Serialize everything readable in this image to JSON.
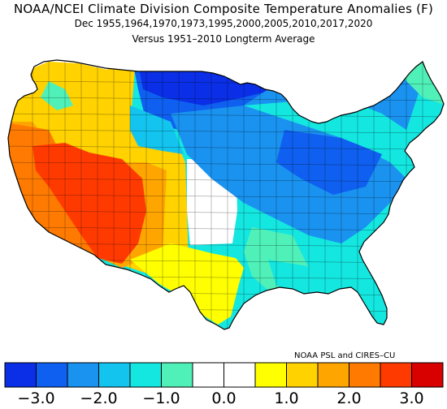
{
  "title": "NOAA/NCEI Climate Division Composite Temperature Anomalies (F)",
  "subtitle": "Dec 1955,1964,1970,1973,1995,2000,2005,2010,2017,2020",
  "subtitle2": "Versus 1951–2010 Longterm Average",
  "credit": "NOAA PSL and CIRES–CU",
  "colorbar": {
    "colors": [
      "#0a2fe6",
      "#0f60f0",
      "#1a92f0",
      "#13c4ef",
      "#14e6e0",
      "#4ff1b9",
      "#ffffff",
      "#ffffff",
      "#ffff00",
      "#ffd200",
      "#ffa500",
      "#ff7a00",
      "#ff3a00",
      "#d90000"
    ],
    "tick_labels": [
      "−3.0",
      "−2.0",
      "−1.0",
      "0.0",
      "1.0",
      "2.0",
      "3.0"
    ]
  }
}
